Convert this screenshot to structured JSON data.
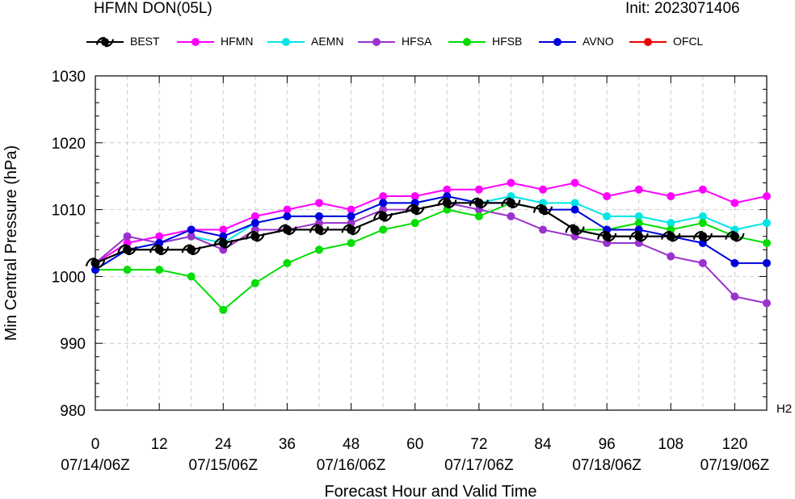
{
  "header": {
    "title": "HFMN DON(05L)",
    "init": "Init: 2023071406"
  },
  "corner_label": "H2",
  "legend": [
    {
      "name": "BEST",
      "color": "#000000",
      "marker": "hurricane"
    },
    {
      "name": "HFMN",
      "color": "#ff00ff",
      "marker": "dot"
    },
    {
      "name": "AEMN",
      "color": "#00e5e5",
      "marker": "dot"
    },
    {
      "name": "HFSA",
      "color": "#9a32cd",
      "marker": "dot"
    },
    {
      "name": "HFSB",
      "color": "#00dd00",
      "marker": "dot"
    },
    {
      "name": "AVNO",
      "color": "#0000dd",
      "marker": "dot"
    },
    {
      "name": "OFCL",
      "color": "#ee0000",
      "marker": "dot"
    }
  ],
  "chart_data": {
    "type": "line",
    "title": "",
    "xlabel": "Forecast Hour and Valid Time",
    "ylabel": "Min Central Pressure (hPa)",
    "xlim": [
      0,
      126
    ],
    "ylim": [
      980,
      1030
    ],
    "x_ticks": [
      {
        "value": 0,
        "label": "0",
        "date": "07/14/06Z"
      },
      {
        "value": 12,
        "label": "12",
        "date": ""
      },
      {
        "value": 24,
        "label": "24",
        "date": "07/15/06Z"
      },
      {
        "value": 36,
        "label": "36",
        "date": ""
      },
      {
        "value": 48,
        "label": "48",
        "date": "07/16/06Z"
      },
      {
        "value": 60,
        "label": "60",
        "date": ""
      },
      {
        "value": 72,
        "label": "72",
        "date": "07/17/06Z"
      },
      {
        "value": 84,
        "label": "84",
        "date": ""
      },
      {
        "value": 96,
        "label": "96",
        "date": "07/18/06Z"
      },
      {
        "value": 108,
        "label": "108",
        "date": ""
      },
      {
        "value": 120,
        "label": "120",
        "date": "07/19/06Z"
      }
    ],
    "y_ticks": [
      980,
      990,
      1000,
      1010,
      1020,
      1030
    ],
    "grid": true,
    "series": [
      {
        "name": "HFMN",
        "color": "#ff00ff",
        "x": [
          0,
          6,
          12,
          18,
          24,
          30,
          36,
          42,
          48,
          54,
          60,
          66,
          72,
          78,
          84,
          90,
          96,
          102,
          108,
          114,
          120,
          126
        ],
        "values": [
          1002,
          1005,
          1006,
          1007,
          1007,
          1009,
          1010,
          1011,
          1010,
          1012,
          1012,
          1013,
          1013,
          1014,
          1013,
          1014,
          1012,
          1013,
          1012,
          1013,
          1011,
          1012
        ]
      },
      {
        "name": "AEMN",
        "color": "#00e5e5",
        "x": [
          0,
          6,
          12,
          18,
          24,
          30,
          36,
          42,
          48,
          54,
          60,
          66,
          72,
          78,
          84,
          90,
          96,
          102,
          108,
          114,
          120,
          126
        ],
        "values": [
          1001,
          1004,
          1005,
          1006,
          1005,
          1008,
          1009,
          1009,
          1009,
          1011,
          1011,
          1012,
          1011,
          1012,
          1011,
          1011,
          1009,
          1009,
          1008,
          1009,
          1007,
          1008
        ]
      },
      {
        "name": "HFSA",
        "color": "#9a32cd",
        "x": [
          0,
          6,
          12,
          18,
          24,
          30,
          36,
          42,
          48,
          54,
          60,
          66,
          72,
          78,
          84,
          90,
          96,
          102,
          108,
          114,
          120,
          126
        ],
        "values": [
          1002,
          1006,
          1005,
          1006,
          1004,
          1007,
          1007,
          1008,
          1008,
          1010,
          1010,
          1011,
          1010,
          1009,
          1007,
          1006,
          1005,
          1005,
          1003,
          1002,
          997,
          996
        ]
      },
      {
        "name": "HFSB",
        "color": "#00dd00",
        "x": [
          0,
          6,
          12,
          18,
          24,
          30,
          36,
          42,
          48,
          54,
          60,
          66,
          72,
          78,
          84,
          90,
          96,
          102,
          108,
          114,
          120,
          126
        ],
        "values": [
          1001,
          1001,
          1001,
          1000,
          995,
          999,
          1002,
          1004,
          1005,
          1007,
          1008,
          1010,
          1009,
          1011,
          1010,
          1007,
          1007,
          1008,
          1007,
          1008,
          1006,
          1005
        ]
      },
      {
        "name": "AVNO",
        "color": "#0000dd",
        "x": [
          0,
          6,
          12,
          18,
          24,
          30,
          36,
          42,
          48,
          54,
          60,
          66,
          72,
          78,
          84,
          90,
          96,
          102,
          108,
          114,
          120,
          126
        ],
        "values": [
          1001,
          1004,
          1005,
          1007,
          1006,
          1008,
          1009,
          1009,
          1009,
          1011,
          1011,
          1012,
          1011,
          1011,
          1010,
          1010,
          1007,
          1007,
          1006,
          1005,
          1002,
          1002
        ]
      },
      {
        "name": "BEST",
        "color": "#000000",
        "marker": "hurricane",
        "x": [
          0,
          6,
          12,
          18,
          24,
          30,
          36,
          42,
          48,
          54,
          60,
          66,
          72,
          78,
          84,
          90,
          96,
          102,
          108,
          114,
          120
        ],
        "values": [
          1002,
          1004,
          1004,
          1004,
          1005,
          1006,
          1007,
          1007,
          1007,
          1009,
          1010,
          1011,
          1011,
          1011,
          1010,
          1007,
          1006,
          1006,
          1006,
          1006,
          1006
        ]
      }
    ]
  }
}
